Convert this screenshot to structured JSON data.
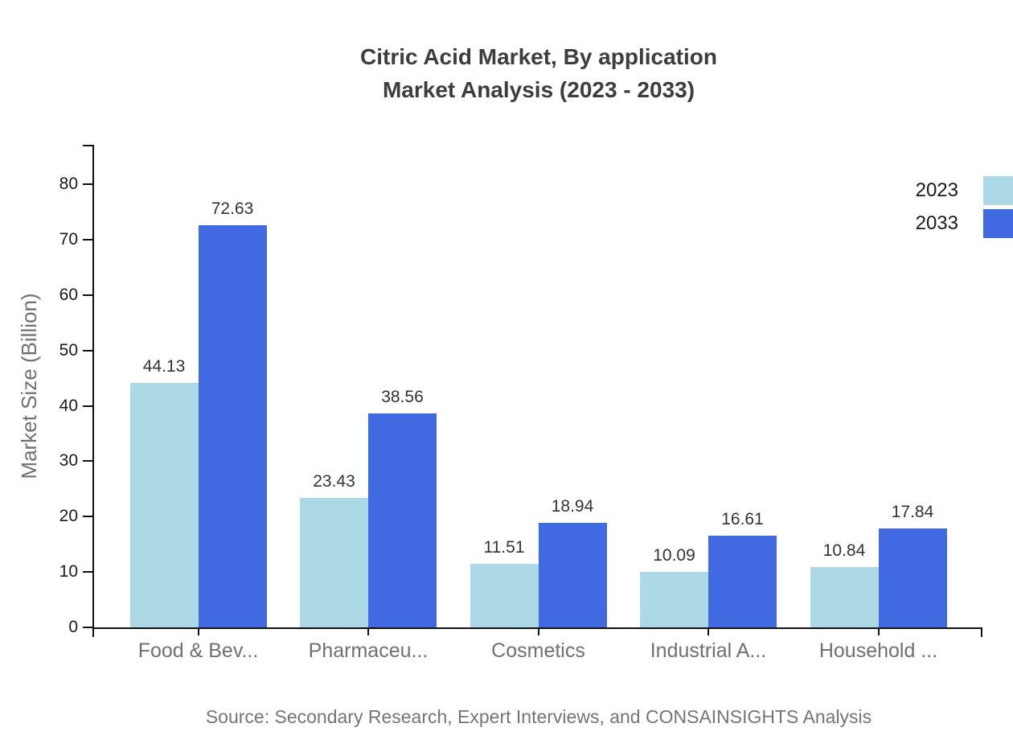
{
  "title": {
    "line1": "Citric Acid Market, By application",
    "line2": "Market Analysis (2023 - 2033)"
  },
  "source": "Source: Secondary Research, Expert Interviews, and CONSAINSIGHTS Analysis",
  "legend": {
    "items": [
      {
        "label": "2023",
        "color": "#add8e6"
      },
      {
        "label": "2033",
        "color": "#4169e1"
      }
    ]
  },
  "colors": {
    "series_2023": "#add8e6",
    "series_2033": "#4169e1",
    "axis": "#111111",
    "title_text": "#3d3d3d",
    "muted_text": "#707070"
  },
  "chart_data": {
    "type": "bar",
    "title": "Citric Acid Market, By application Market Analysis (2023 - 2033)",
    "categories": [
      "Food & Bev...",
      "Pharmaceu...",
      "Cosmetics",
      "Industrial A...",
      "Household ..."
    ],
    "series": [
      {
        "name": "2023",
        "color": "#add8e6",
        "values": [
          44.13,
          23.43,
          11.51,
          10.09,
          10.84
        ]
      },
      {
        "name": "2033",
        "color": "#4169e1",
        "values": [
          72.63,
          38.56,
          18.94,
          16.61,
          17.84
        ]
      }
    ],
    "value_labels": [
      "44.13",
      "72.63",
      "23.43",
      "38.56",
      "11.51",
      "18.94",
      "10.09",
      "16.61",
      "10.84",
      "17.84"
    ],
    "xlabel": "",
    "ylabel": "Market Size (Billion)",
    "yticks": [
      0,
      10,
      20,
      30,
      40,
      50,
      60,
      70,
      80
    ],
    "ylim": [
      0,
      87
    ],
    "grid": false,
    "legend_position": "top-right",
    "value_labels_shown": true
  }
}
